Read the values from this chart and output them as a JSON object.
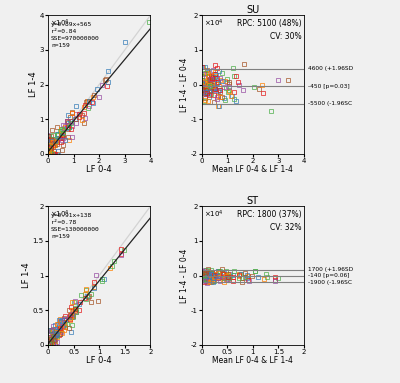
{
  "fig_width": 4.0,
  "fig_height": 3.83,
  "bg_color": "#f0f0f0",
  "colors": [
    "#e41a1c",
    "#4daf4a",
    "#377eb8",
    "#984ea3",
    "#ff7f00",
    "#a65628"
  ],
  "panels": {
    "top_left": {
      "stats": "y=0.89x+565\nr²=0.84\nSSE=970000000\nn=159",
      "xlabel": "LF 0-4",
      "ylabel": "LF 1-4",
      "xlim": [
        0,
        40000
      ],
      "ylim": [
        0,
        40000
      ],
      "xticks": [
        0,
        10000,
        20000,
        30000,
        40000
      ],
      "yticks": [
        0,
        10000,
        20000,
        30000,
        40000
      ],
      "slope": 0.89,
      "intercept": 565
    },
    "top_right": {
      "title": "SU",
      "rpc_text": "RPC: 5100 (48%)",
      "cv_text": "CV: 30%",
      "xlabel": "Mean LF 0-4 & LF 1-4",
      "ylabel": "LF 1-4 - LF 0-4",
      "xlim": [
        0,
        40000
      ],
      "ylim": [
        -20000,
        20000
      ],
      "xticks": [
        0,
        10000,
        20000,
        30000,
        40000
      ],
      "yticks": [
        -20000,
        -10000,
        0,
        10000,
        20000
      ],
      "upper_loa": 4600,
      "mean_bias": -450,
      "lower_loa": -5500,
      "upper_label": "4600 (+1.96SD",
      "mean_label": "-450 [p=0.03]",
      "lower_label": "-5500 (-1.96SC"
    },
    "bottom_left": {
      "stats": "y=0.91x+138\nr²=0.78\nSSE=130000000\nn=159",
      "xlabel": "LF 0-4",
      "ylabel": "LF 1-4",
      "xlim": [
        0,
        20000
      ],
      "ylim": [
        0,
        20000
      ],
      "xticks": [
        0,
        5000,
        10000,
        15000,
        20000
      ],
      "yticks": [
        0,
        5000,
        10000,
        15000,
        20000
      ],
      "slope": 0.91,
      "intercept": 138
    },
    "bottom_right": {
      "title": "ST",
      "rpc_text": "RPC: 1800 (37%)",
      "cv_text": "CV: 32%",
      "xlabel": "Mean LF 0-4 & LF 1-4",
      "ylabel": "LF 1-4 - LF 0-4",
      "xlim": [
        0,
        20000
      ],
      "ylim": [
        -20000,
        20000
      ],
      "xticks": [
        0,
        5000,
        10000,
        15000,
        20000
      ],
      "yticks": [
        -20000,
        -10000,
        0,
        10000,
        20000
      ],
      "upper_loa": 1700,
      "mean_bias": -140,
      "lower_loa": -1900,
      "upper_label": "1700 (+1.96SD",
      "mean_label": "-140 [p=0.06]",
      "lower_label": "-1900 (-1.96SC"
    }
  }
}
